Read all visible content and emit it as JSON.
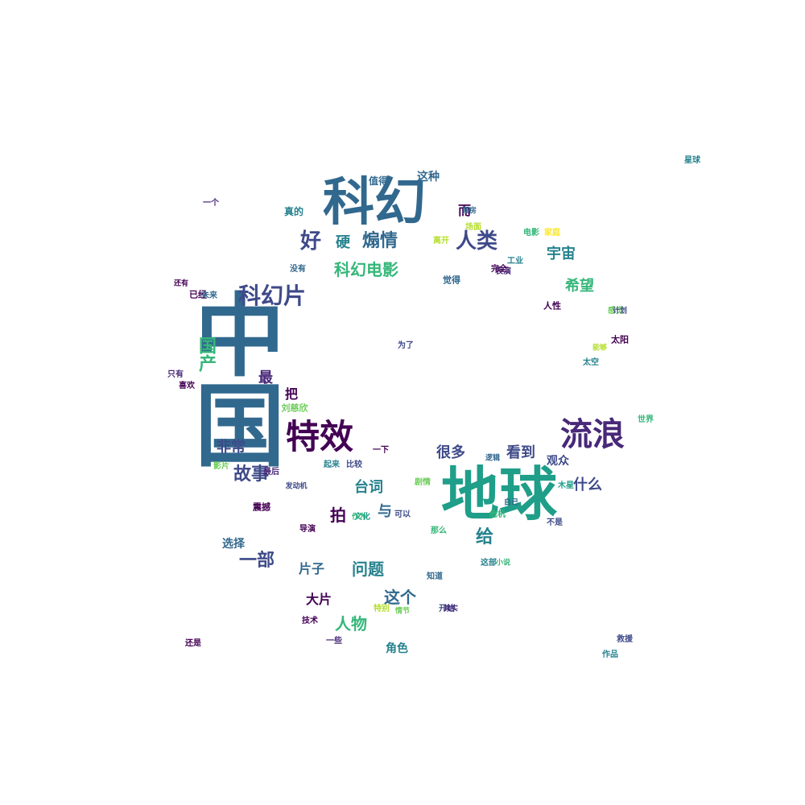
{
  "palette": [
    "#440154",
    "#482878",
    "#3e4a89",
    "#31688e",
    "#26828e",
    "#1f9e89",
    "#35b779",
    "#6dcd59",
    "#b4de2c",
    "#fde725"
  ],
  "words": [
    {
      "text": "中国",
      "color": "#31688e"
    },
    {
      "text": "地球",
      "color": "#1f9e89"
    },
    {
      "text": "科幻",
      "color": "#31688e"
    },
    {
      "text": "流浪",
      "color": "#482878"
    },
    {
      "text": "特效",
      "color": "#440154"
    },
    {
      "text": "科幻片",
      "color": "#3e4a89"
    },
    {
      "text": "科幻电影",
      "color": "#35b779"
    },
    {
      "text": "好",
      "color": "#3e4a89"
    },
    {
      "text": "人类",
      "color": "#3e4a89"
    },
    {
      "text": "煽情",
      "color": "#31688e"
    },
    {
      "text": "硬",
      "color": "#26828e"
    },
    {
      "text": "宇宙",
      "color": "#26828e"
    },
    {
      "text": "希望",
      "color": "#35b779"
    },
    {
      "text": "故事",
      "color": "#3e4a89"
    },
    {
      "text": "非常",
      "color": "#3e4a89"
    },
    {
      "text": "很多",
      "color": "#3e4a89"
    },
    {
      "text": "看到",
      "color": "#3e4a89"
    },
    {
      "text": "什么",
      "color": "#3e4a89"
    },
    {
      "text": "台词",
      "color": "#26828e"
    },
    {
      "text": "拍",
      "color": "#440154"
    },
    {
      "text": "与",
      "color": "#31688e"
    },
    {
      "text": "给",
      "color": "#26828e"
    },
    {
      "text": "问题",
      "color": "#26828e"
    },
    {
      "text": "片子",
      "color": "#31688e"
    },
    {
      "text": "一部",
      "color": "#3e4a89"
    },
    {
      "text": "这个",
      "color": "#31688e"
    },
    {
      "text": "大片",
      "color": "#440154"
    },
    {
      "text": "人物",
      "color": "#35b779"
    },
    {
      "text": "角色",
      "color": "#26828e"
    },
    {
      "text": "选择",
      "color": "#31688e"
    },
    {
      "text": "把",
      "color": "#440154"
    },
    {
      "text": "最",
      "color": "#482878"
    },
    {
      "text": "国产",
      "color": "#35b779"
    },
    {
      "text": "而",
      "color": "#440154"
    },
    {
      "text": "这种",
      "color": "#31688e"
    },
    {
      "text": "值得",
      "color": "#31688e"
    },
    {
      "text": "一下",
      "color": "#440154"
    },
    {
      "text": "观众",
      "color": "#3e4a89"
    },
    {
      "text": "刘慈欣",
      "color": "#6dcd59"
    },
    {
      "text": "技术",
      "color": "#440154"
    },
    {
      "text": "开始",
      "color": "#3e4a89"
    },
    {
      "text": "太空",
      "color": "#26828e"
    },
    {
      "text": "工业",
      "color": "#26828e"
    },
    {
      "text": "电影",
      "color": "#35b779"
    },
    {
      "text": "作品",
      "color": "#26828e"
    },
    {
      "text": "世界",
      "color": "#35b779"
    },
    {
      "text": "已经",
      "color": "#440154"
    },
    {
      "text": "只有",
      "color": "#482878"
    },
    {
      "text": "觉得",
      "color": "#31688e"
    },
    {
      "text": "不是",
      "color": "#3e4a89"
    },
    {
      "text": "喜欢",
      "color": "#440154"
    },
    {
      "text": "比较",
      "color": "#3e4a89"
    },
    {
      "text": "最后",
      "color": "#482878"
    },
    {
      "text": "太阳",
      "color": "#440154"
    },
    {
      "text": "没有",
      "color": "#31688e"
    },
    {
      "text": "感觉",
      "color": "#6dcd59"
    },
    {
      "text": "人性",
      "color": "#440154"
    },
    {
      "text": "文化",
      "color": "#1f9e89"
    },
    {
      "text": "表演",
      "color": "#482878"
    },
    {
      "text": "影片",
      "color": "#6dcd59"
    },
    {
      "text": "家庭",
      "color": "#fde725"
    },
    {
      "text": "特别",
      "color": "#b4de2c"
    },
    {
      "text": "那么",
      "color": "#35b779"
    },
    {
      "text": "还是",
      "color": "#440154"
    },
    {
      "text": "一些",
      "color": "#482878"
    },
    {
      "text": "这部",
      "color": "#26828e"
    },
    {
      "text": "知道",
      "color": "#31688e"
    },
    {
      "text": "剧情",
      "color": "#6dcd59"
    },
    {
      "text": "完全",
      "color": "#440154"
    },
    {
      "text": "木星",
      "color": "#1f9e89"
    },
    {
      "text": "离开",
      "color": "#b4de2c"
    },
    {
      "text": "可以",
      "color": "#3e4a89"
    },
    {
      "text": "起来",
      "color": "#26828e"
    },
    {
      "text": "导演",
      "color": "#440154"
    },
    {
      "text": "场面",
      "color": "#b4de2c"
    },
    {
      "text": "未来",
      "color": "#31688e"
    },
    {
      "text": "危机",
      "color": "#35b779"
    },
    {
      "text": "为了",
      "color": "#3e4a89"
    },
    {
      "text": "一个",
      "color": "#482878"
    },
    {
      "text": "作为",
      "color": "#35b779"
    },
    {
      "text": "真的",
      "color": "#26828e"
    },
    {
      "text": "震撼",
      "color": "#440154"
    },
    {
      "text": "逻辑",
      "color": "#31688e"
    },
    {
      "text": "救援",
      "color": "#3e4a89"
    },
    {
      "text": "还有",
      "color": "#440154"
    },
    {
      "text": "情节",
      "color": "#6dcd59"
    },
    {
      "text": "自己",
      "color": "#31688e"
    },
    {
      "text": "发动机",
      "color": "#3e4a89"
    },
    {
      "text": "星球",
      "color": "#26828e"
    },
    {
      "text": "其实",
      "color": "#482878"
    },
    {
      "text": "计划",
      "color": "#3e4a89"
    },
    {
      "text": "小说",
      "color": "#35b779"
    },
    {
      "text": "票房",
      "color": "#31688e"
    },
    {
      "text": "能够",
      "color": "#b4de2c"
    }
  ]
}
